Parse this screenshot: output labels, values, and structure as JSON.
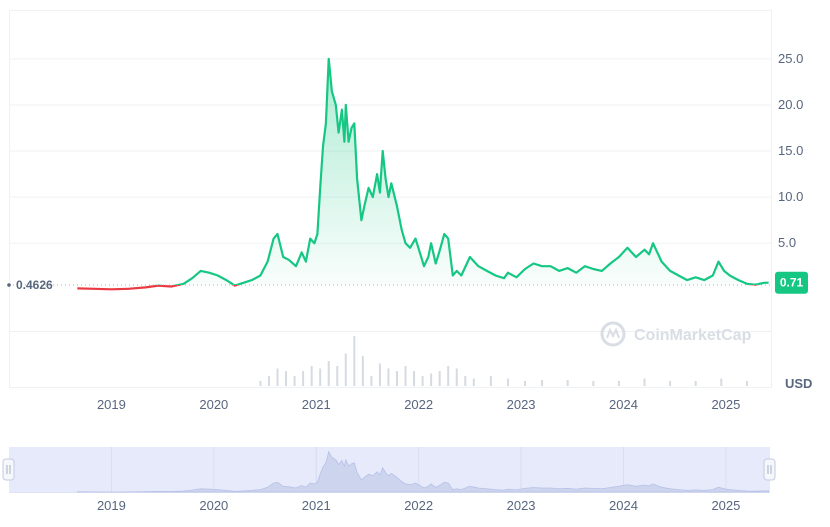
{
  "chart_data": {
    "type": "area",
    "y_axis_unit": "USD",
    "ylim": [
      -10.6,
      30.3
    ],
    "y_ticks": [
      "5.0",
      "10.0",
      "15.0",
      "20.0",
      "25.0"
    ],
    "x_ticks": [
      "2019",
      "2020",
      "2021",
      "2022",
      "2023",
      "2024",
      "2025"
    ],
    "baseline_value_label": "0.4626",
    "current_value_label": "0.71",
    "watermark": "CoinMarketCap",
    "colors": {
      "up": "#16c784",
      "down": "#ea3943",
      "grid": "#eff2f5",
      "navigator_fill": "#e6eafb"
    },
    "series": [
      {
        "x": [
          "2018-09-01",
          "2018-11-01",
          "2019-01-01",
          "2019-03-01",
          "2019-05-01",
          "2019-06-15",
          "2019-08-01",
          "2019-09-15",
          "2019-10-15",
          "2019-11-15",
          "2019-12-15",
          "2020-01-15",
          "2020-02-15",
          "2020-03-15",
          "2020-04-15",
          "2020-05-15",
          "2020-06-15",
          "2020-07-10",
          "2020-08-01",
          "2020-08-15",
          "2020-09-05",
          "2020-09-25",
          "2020-10-20",
          "2020-11-10",
          "2020-11-25",
          "2020-12-10",
          "2020-12-25",
          "2021-01-05",
          "2021-01-15",
          "2021-01-25",
          "2021-02-05",
          "2021-02-15",
          "2021-02-20",
          "2021-02-26",
          "2021-03-10",
          "2021-03-20",
          "2021-04-01",
          "2021-04-10",
          "2021-04-15",
          "2021-04-25",
          "2021-05-05",
          "2021-05-15",
          "2021-05-25",
          "2021-06-10",
          "2021-06-20",
          "2021-07-05",
          "2021-07-20",
          "2021-08-05",
          "2021-08-15",
          "2021-08-25",
          "2021-09-05",
          "2021-09-15",
          "2021-09-25",
          "2021-10-15",
          "2021-11-01",
          "2021-11-15",
          "2021-12-01",
          "2021-12-20",
          "2022-01-05",
          "2022-01-20",
          "2022-02-05",
          "2022-02-15",
          "2022-03-01",
          "2022-03-15",
          "2022-04-01",
          "2022-04-15",
          "2022-05-01",
          "2022-05-15",
          "2022-06-01",
          "2022-07-01",
          "2022-08-01",
          "2022-09-01",
          "2022-10-01",
          "2022-11-01",
          "2022-11-15",
          "2022-12-15",
          "2023-01-15",
          "2023-02-15",
          "2023-03-15",
          "2023-04-15",
          "2023-05-15",
          "2023-06-15",
          "2023-07-15",
          "2023-08-15",
          "2023-09-15",
          "2023-10-15",
          "2023-11-15",
          "2023-12-15",
          "2024-01-15",
          "2024-02-15",
          "2024-03-15",
          "2024-04-01",
          "2024-04-15",
          "2024-05-15",
          "2024-06-15",
          "2024-07-15",
          "2024-08-15",
          "2024-09-15",
          "2024-10-15",
          "2024-11-15",
          "2024-12-05",
          "2024-12-25",
          "2025-01-15",
          "2025-02-15",
          "2025-03-15",
          "2025-04-15",
          "2025-05-15",
          "2025-06-01"
        ],
        "values": [
          0.1,
          0.05,
          0.0,
          0.05,
          0.2,
          0.4,
          0.3,
          0.6,
          1.2,
          2.0,
          1.8,
          1.5,
          1.0,
          0.4,
          0.7,
          1.0,
          1.5,
          3.0,
          5.5,
          6.0,
          3.5,
          3.2,
          2.5,
          4.0,
          3.0,
          5.5,
          5.0,
          6.0,
          11.0,
          15.5,
          18.0,
          25.0,
          23.5,
          21.5,
          20.0,
          17.0,
          19.5,
          16.0,
          20.0,
          16.0,
          17.5,
          18.0,
          12.0,
          7.5,
          9.0,
          11.0,
          10.0,
          12.5,
          10.5,
          15.0,
          12.0,
          10.0,
          11.5,
          9.0,
          6.5,
          5.0,
          4.5,
          5.5,
          4.0,
          2.5,
          3.5,
          5.0,
          2.8,
          4.2,
          6.0,
          5.5,
          1.5,
          2.0,
          1.5,
          3.5,
          2.5,
          2.0,
          1.5,
          1.2,
          1.8,
          1.3,
          2.2,
          2.8,
          2.5,
          2.5,
          2.0,
          2.3,
          1.8,
          2.5,
          2.2,
          2.0,
          2.8,
          3.5,
          4.5,
          3.5,
          4.3,
          3.8,
          5.0,
          3.0,
          2.0,
          1.5,
          1.0,
          1.3,
          1.0,
          1.5,
          3.0,
          2.0,
          1.5,
          1.0,
          0.6,
          0.5,
          0.7,
          0.71
        ]
      }
    ],
    "volume": {
      "x": [
        "2020-06",
        "2020-07",
        "2020-08",
        "2020-09",
        "2020-10",
        "2020-11",
        "2020-12",
        "2021-01",
        "2021-02",
        "2021-03",
        "2021-04",
        "2021-05",
        "2021-06",
        "2021-07",
        "2021-08",
        "2021-09",
        "2021-10",
        "2021-11",
        "2021-12",
        "2022-01",
        "2022-02",
        "2022-03",
        "2022-04",
        "2022-05",
        "2022-06",
        "2022-07",
        "2022-09",
        "2022-11",
        "2023-01",
        "2023-03",
        "2023-06",
        "2023-09",
        "2023-12",
        "2024-03",
        "2024-06",
        "2024-09",
        "2024-12",
        "2025-03"
      ],
      "values": [
        0.1,
        0.2,
        0.35,
        0.3,
        0.2,
        0.3,
        0.4,
        0.35,
        0.5,
        0.4,
        0.65,
        1.0,
        0.6,
        0.2,
        0.45,
        0.35,
        0.3,
        0.4,
        0.3,
        0.2,
        0.25,
        0.3,
        0.4,
        0.35,
        0.2,
        0.15,
        0.2,
        0.15,
        0.1,
        0.12,
        0.12,
        0.1,
        0.1,
        0.15,
        0.1,
        0.1,
        0.15,
        0.1
      ]
    }
  }
}
